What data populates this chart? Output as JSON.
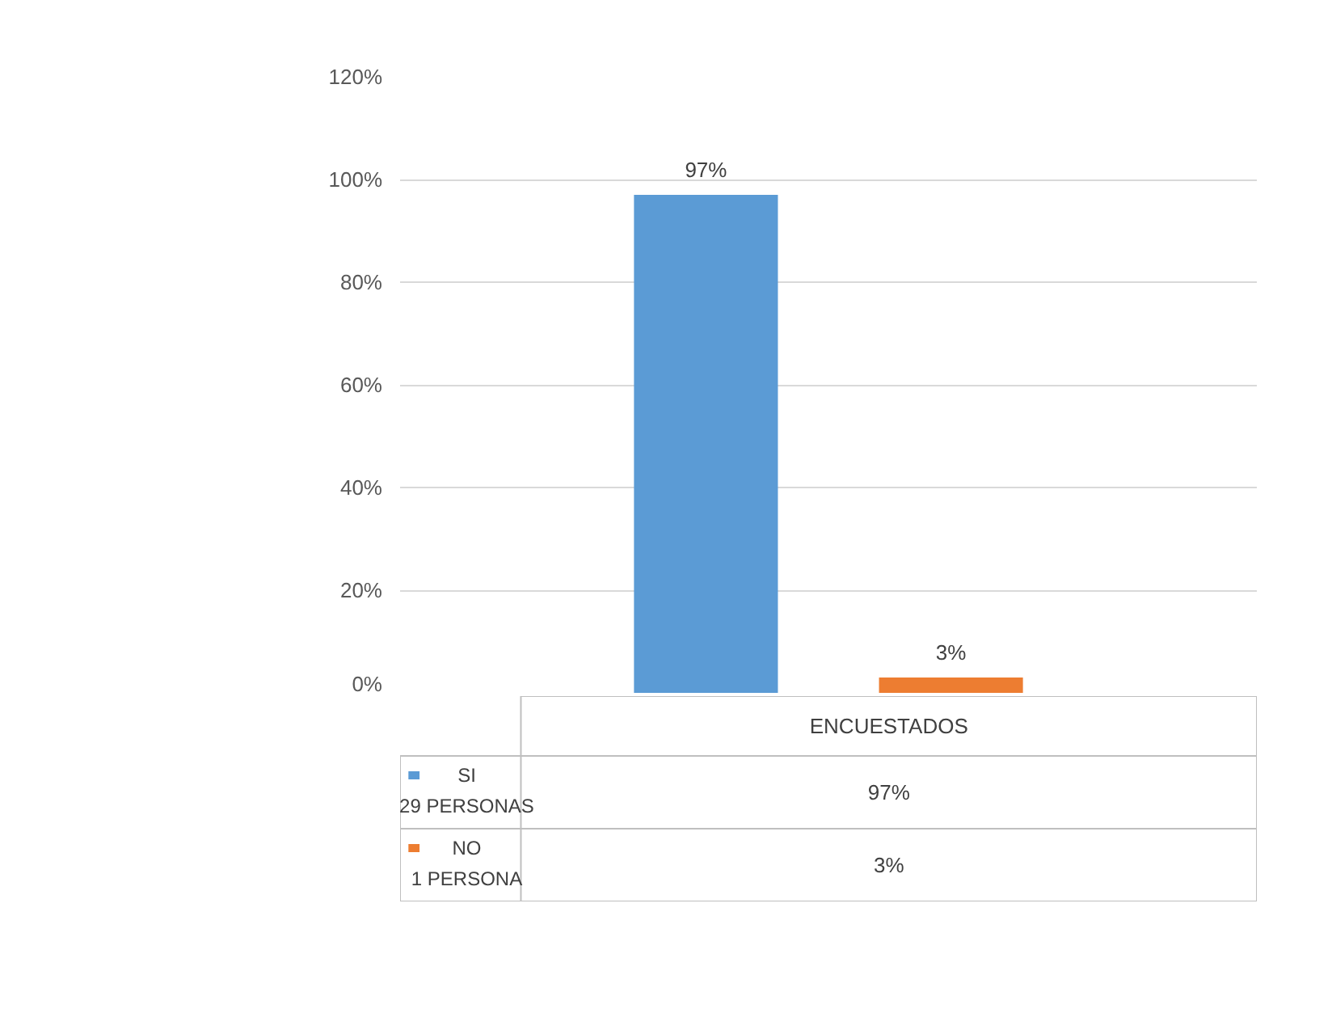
{
  "chart_data": {
    "type": "bar",
    "categories": [
      "ENCUESTADOS"
    ],
    "series": [
      {
        "name": "SI\n29 PERSONAS",
        "color": "#5b9bd5",
        "values": [
          97
        ],
        "value_labels": [
          "97%"
        ]
      },
      {
        "name": "NO\n1 PERSONA",
        "color": "#ed7d31",
        "values": [
          3
        ],
        "value_labels": [
          "3%"
        ]
      }
    ],
    "ylim": [
      0,
      120
    ],
    "yticks": [
      {
        "value": 0,
        "label": "0%"
      },
      {
        "value": 20,
        "label": "20%"
      },
      {
        "value": 40,
        "label": "40%"
      },
      {
        "value": 60,
        "label": "60%"
      },
      {
        "value": 80,
        "label": "80%"
      },
      {
        "value": 100,
        "label": "100%"
      },
      {
        "value": 120,
        "label": "120%"
      }
    ],
    "grid": "y",
    "legend": "bottom"
  }
}
